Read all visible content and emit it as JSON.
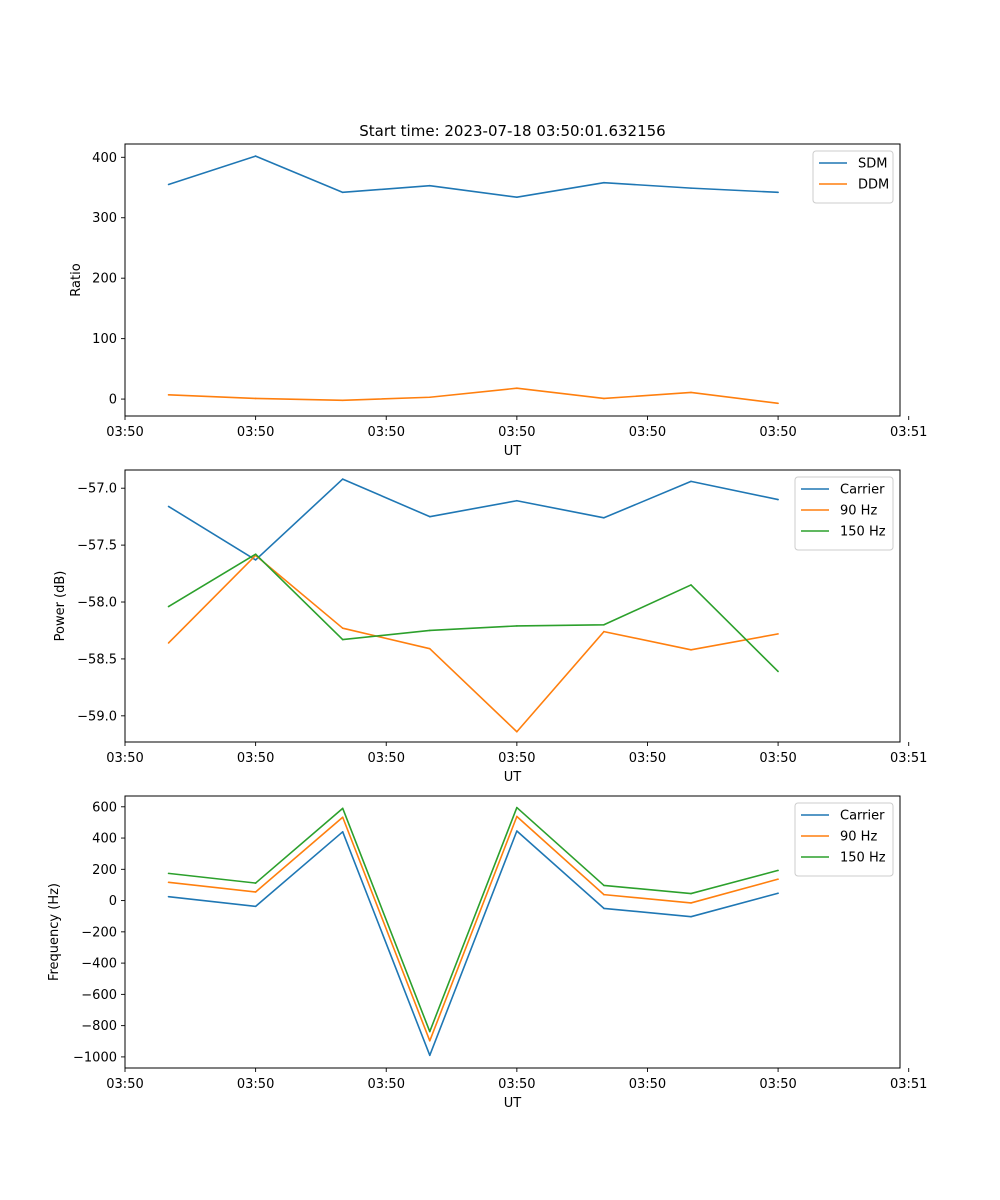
{
  "figure_title": "Start time: 2023-07-18 03:50:01.632156",
  "chart_data": [
    {
      "type": "line",
      "title": "Start time: 2023-07-18 03:50:01.632156",
      "xlabel": "UT",
      "ylabel": "Ratio",
      "x": [
        0,
        1,
        2,
        3,
        4,
        5,
        6,
        7
      ],
      "xlim": [
        -0.5,
        8.4
      ],
      "xticks": [
        -0.5,
        1.0,
        2.5,
        4.0,
        5.5,
        7.0,
        8.5
      ],
      "xtick_labels": [
        "03:50",
        "03:50",
        "03:50",
        "03:50",
        "03:50",
        "03:50",
        "03:51"
      ],
      "ylim": [
        -28,
        422
      ],
      "yticks": [
        0,
        100,
        200,
        300,
        400
      ],
      "ytick_labels": [
        "0",
        "100",
        "200",
        "300",
        "400"
      ],
      "legend": "top-right",
      "series": [
        {
          "name": "SDM",
          "color": "#1f77b4",
          "values": [
            355,
            402,
            342,
            353,
            334,
            358,
            349,
            342
          ]
        },
        {
          "name": "DDM",
          "color": "#ff7f0e",
          "values": [
            7,
            1,
            -2,
            3,
            18,
            1,
            11,
            -7
          ]
        }
      ]
    },
    {
      "type": "line",
      "title": "",
      "xlabel": "UT",
      "ylabel": "Power (dB)",
      "x": [
        0,
        1,
        2,
        3,
        4,
        5,
        6,
        7
      ],
      "xlim": [
        -0.5,
        8.4
      ],
      "xticks": [
        -0.5,
        1.0,
        2.5,
        4.0,
        5.5,
        7.0,
        8.5
      ],
      "xtick_labels": [
        "03:50",
        "03:50",
        "03:50",
        "03:50",
        "03:50",
        "03:50",
        "03:51"
      ],
      "ylim": [
        -59.23,
        -56.84
      ],
      "yticks": [
        -59.0,
        -58.5,
        -58.0,
        -57.5,
        -57.0
      ],
      "ytick_labels": [
        "−59.0",
        "−58.5",
        "−58.0",
        "−57.5",
        "−57.0"
      ],
      "legend": "top-right",
      "series": [
        {
          "name": "Carrier",
          "color": "#1f77b4",
          "values": [
            -57.16,
            -57.63,
            -56.92,
            -57.25,
            -57.11,
            -57.26,
            -56.94,
            -57.1
          ]
        },
        {
          "name": "90 Hz",
          "color": "#ff7f0e",
          "values": [
            -58.36,
            -57.59,
            -58.23,
            -58.41,
            -59.14,
            -58.26,
            -58.42,
            -58.28
          ]
        },
        {
          "name": "150 Hz",
          "color": "#2ca02c",
          "values": [
            -58.04,
            -57.58,
            -58.33,
            -58.25,
            -58.21,
            -58.2,
            -57.85,
            -58.61
          ]
        }
      ]
    },
    {
      "type": "line",
      "title": "",
      "xlabel": "UT",
      "ylabel": "Frequency (Hz)",
      "x": [
        0,
        1,
        2,
        3,
        4,
        5,
        6,
        7
      ],
      "xlim": [
        -0.5,
        8.4
      ],
      "xticks": [
        -0.5,
        1.0,
        2.5,
        4.0,
        5.5,
        7.0,
        8.5
      ],
      "xtick_labels": [
        "03:50",
        "03:50",
        "03:50",
        "03:50",
        "03:50",
        "03:50",
        "03:51"
      ],
      "ylim": [
        -1071,
        669
      ],
      "yticks": [
        -1000,
        -800,
        -600,
        -400,
        -200,
        0,
        200,
        400,
        600
      ],
      "ytick_labels": [
        "−1000",
        "−800",
        "−600",
        "−400",
        "−200",
        "0",
        "200",
        "400",
        "600"
      ],
      "legend": "top-right",
      "series": [
        {
          "name": "Carrier",
          "color": "#1f77b4",
          "values": [
            25,
            -37,
            440,
            -990,
            445,
            -50,
            -103,
            47
          ]
        },
        {
          "name": "90 Hz",
          "color": "#ff7f0e",
          "values": [
            117,
            55,
            533,
            -897,
            538,
            38,
            -15,
            137
          ]
        },
        {
          "name": "150 Hz",
          "color": "#2ca02c",
          "values": [
            174,
            112,
            590,
            -838,
            595,
            97,
            45,
            193
          ]
        }
      ]
    }
  ]
}
